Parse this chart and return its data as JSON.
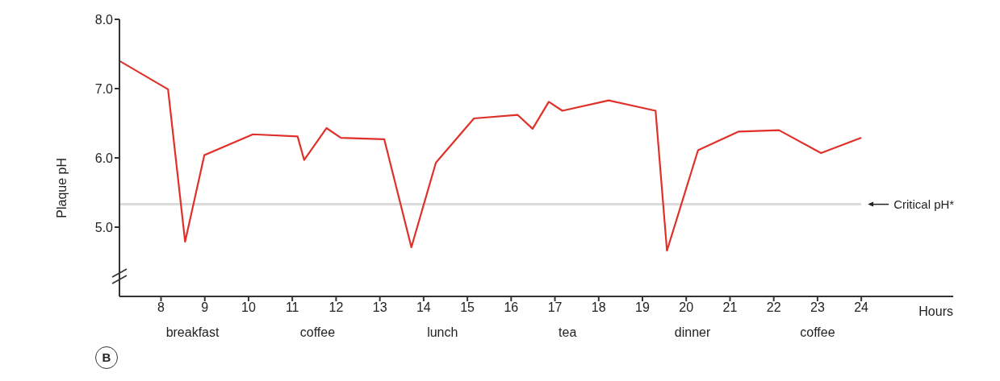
{
  "chart_data": {
    "type": "line",
    "xlabel": "Hours",
    "ylabel": "Plaque pH",
    "x": [
      7.05,
      8.16,
      8.55,
      8.99,
      10.1,
      11.12,
      11.27,
      11.78,
      12.11,
      13.1,
      13.72,
      14.28,
      15.15,
      16.15,
      16.49,
      16.86,
      17.17,
      18.23,
      19.3,
      19.56,
      20.27,
      21.2,
      22.12,
      23.08,
      24.0
    ],
    "series": [
      {
        "color": "#e0302a",
        "values": [
          7.4,
          6.99,
          4.79,
          6.04,
          6.34,
          6.31,
          5.97,
          6.43,
          6.29,
          6.27,
          4.71,
          5.93,
          6.57,
          6.62,
          6.42,
          6.81,
          6.68,
          6.83,
          6.68,
          4.66,
          6.11,
          6.38,
          6.4,
          6.07,
          6.29
        ]
      }
    ],
    "xlim": [
      7.05,
      26.1
    ],
    "xticks": [
      8,
      9,
      10,
      11,
      12,
      13,
      14,
      15,
      16,
      17,
      18,
      19,
      20,
      21,
      22,
      23,
      24
    ],
    "ylim": [
      4.0,
      8.0
    ],
    "yticks": [
      {
        "value": 5,
        "label": "5.0"
      },
      {
        "value": 6,
        "label": "6.0"
      },
      {
        "value": 7,
        "label": "7.0"
      },
      {
        "value": 8,
        "label": "8.0"
      }
    ],
    "ref_lines": [
      {
        "axis": "y",
        "value": 5.33,
        "label": "Critical pH*",
        "color": "#dcdcdc"
      }
    ],
    "annotations": [
      "breakfast",
      "coffee",
      "lunch",
      "tea",
      "dinner",
      "coffee",
      "B"
    ],
    "grid": false,
    "legend": false,
    "marker": "none",
    "line_style": "solid"
  }
}
